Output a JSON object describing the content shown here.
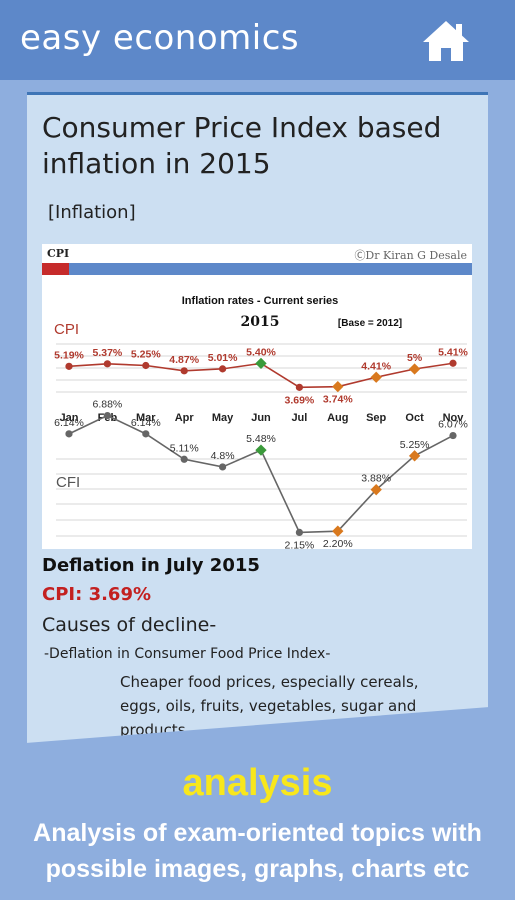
{
  "app": {
    "title": "easy economics",
    "home_icon": "home-icon"
  },
  "article": {
    "title": "Consumer Price Index based inflation in 2015",
    "tag": "[Inflation]",
    "figure": {
      "label": "CPI",
      "credit": "ⒸDr Kiran G Desale",
      "chart_title": "Inflation rates - Current series",
      "year": "2015",
      "base": "[Base = 2012]"
    },
    "heading": "Deflation in July 2015",
    "cpi_value": "CPI: 3.69%",
    "causes_heading": "Causes of decline-",
    "bullet": "-Deflation in Consumer Food Price Index-",
    "bullet_detail": "Cheaper food prices, especially cereals, eggs, oils, fruits, vegetables, sugar and products"
  },
  "chart_data": {
    "type": "line",
    "title": "Inflation rates - Current series",
    "categories": [
      "Jan",
      "Feb",
      "Mar",
      "Apr",
      "May",
      "Jun",
      "Jul",
      "Aug",
      "Sep",
      "Oct",
      "Nov"
    ],
    "series": [
      {
        "name": "CPI",
        "values": [
          5.19,
          5.37,
          5.25,
          4.87,
          5.01,
          5.4,
          3.69,
          3.74,
          4.41,
          5.0,
          5.41
        ],
        "labels": [
          "5.19%",
          "5.37%",
          "5.25%",
          "4.87%",
          "5.01%",
          "5.40%",
          "3.69%",
          "3.74%",
          "4.41%",
          "5%",
          "5.41%"
        ],
        "color": "#b03a2e"
      },
      {
        "name": "CFI",
        "values": [
          6.14,
          6.88,
          6.14,
          5.11,
          4.8,
          5.48,
          2.15,
          2.2,
          3.88,
          5.25,
          6.07
        ],
        "labels": [
          "6.14%",
          "6.88%",
          "6.14%",
          "5.11%",
          "4.8%",
          "5.48%",
          "2.15%",
          "2.20%",
          "3.88%",
          "5.25%",
          "6.07%"
        ],
        "color": "#666666"
      }
    ],
    "grid": true
  },
  "promo": {
    "title": "analysis",
    "text": "Analysis of exam-oriented topics with possible images, graphs, charts etc"
  }
}
